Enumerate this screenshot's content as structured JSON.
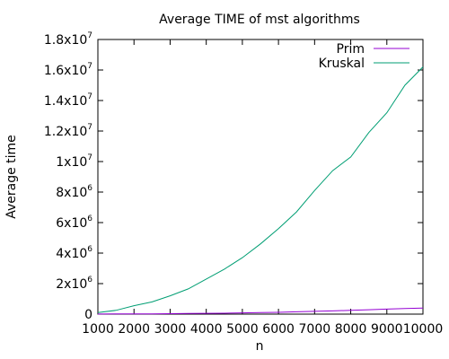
{
  "chart_data": {
    "type": "line",
    "title": "Average TIME of mst algorithms",
    "xlabel": "n",
    "ylabel": "Average time",
    "xlim": [
      1000,
      10000
    ],
    "ylim": [
      0,
      18000000
    ],
    "grid": false,
    "legend_position": "top-right",
    "x_ticks": [
      1000,
      2000,
      3000,
      4000,
      5000,
      6000,
      7000,
      8000,
      9000,
      10000
    ],
    "x_tick_labels": [
      "1000",
      "2000",
      "3000",
      "4000",
      "5000",
      "6000",
      "7000",
      "8000",
      "9000",
      "10000"
    ],
    "y_ticks": [
      {
        "value": 0,
        "mantissa": "0",
        "exponent": ""
      },
      {
        "value": 2000000,
        "mantissa": "2x10",
        "exponent": "6"
      },
      {
        "value": 4000000,
        "mantissa": "4x10",
        "exponent": "6"
      },
      {
        "value": 6000000,
        "mantissa": "6x10",
        "exponent": "6"
      },
      {
        "value": 8000000,
        "mantissa": "8x10",
        "exponent": "6"
      },
      {
        "value": 10000000,
        "mantissa": "1x10",
        "exponent": "7"
      },
      {
        "value": 12000000,
        "mantissa": "1.2x10",
        "exponent": "7"
      },
      {
        "value": 14000000,
        "mantissa": "1.4x10",
        "exponent": "7"
      },
      {
        "value": 16000000,
        "mantissa": "1.6x10",
        "exponent": "7"
      },
      {
        "value": 18000000,
        "mantissa": "1.8x10",
        "exponent": "7"
      }
    ],
    "x": [
      1000,
      1500,
      2000,
      2500,
      3000,
      3500,
      4000,
      4500,
      5000,
      5500,
      6000,
      6500,
      7000,
      7500,
      8000,
      8500,
      9000,
      9500,
      10000
    ],
    "series": [
      {
        "name": "Prim",
        "color": "#9400d3",
        "values": [
          5000,
          10000,
          15000,
          20000,
          30000,
          40000,
          50000,
          60000,
          80000,
          100000,
          120000,
          150000,
          180000,
          210000,
          250000,
          290000,
          330000,
          370000,
          400000
        ]
      },
      {
        "name": "Kruskal",
        "color": "#009e73",
        "values": [
          100000,
          250000,
          550000,
          800000,
          1200000,
          1650000,
          2300000,
          2950000,
          3700000,
          4600000,
          5600000,
          6700000,
          8100000,
          9400000,
          10300000,
          11900000,
          13200000,
          15000000,
          16200000
        ]
      }
    ]
  }
}
